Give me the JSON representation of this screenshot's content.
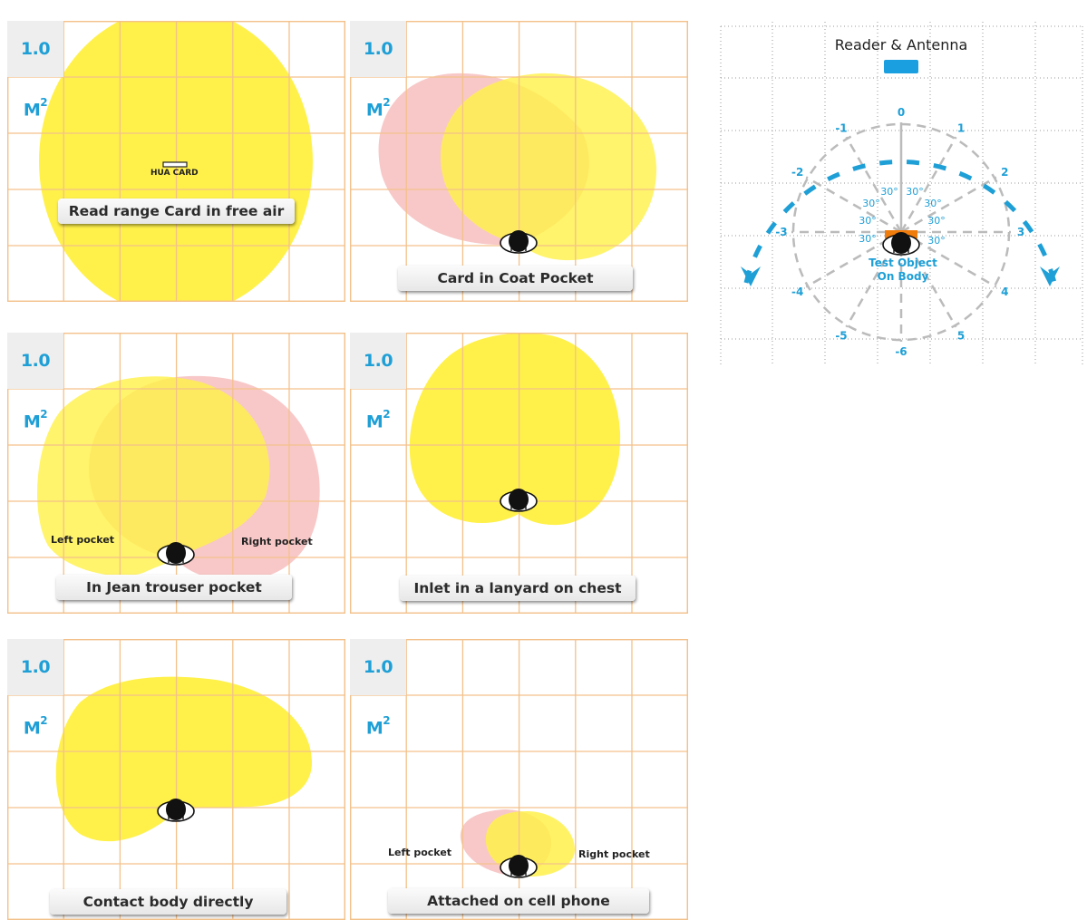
{
  "unit_label": {
    "value": "1.0 M",
    "exponent": "2"
  },
  "panels": [
    {
      "caption": "Read range Card in free air",
      "card_label": "HUA CARD"
    },
    {
      "caption": "Card in Coat Pocket"
    },
    {
      "caption": "In Jean trouser pocket",
      "left_label": "Left pocket",
      "right_label": "Right pocket"
    },
    {
      "caption": "Inlet in a lanyard on chest"
    },
    {
      "caption": "Contact body directly"
    },
    {
      "caption": "Attached on cell phone",
      "left_label": "Left pocket",
      "right_label": "Right pocket"
    }
  ],
  "polar": {
    "title": "Reader & Antenna",
    "test_object": [
      "Test Object",
      "On Body"
    ],
    "angle_label": "30°",
    "ring_labels": [
      "0",
      "1",
      "2",
      "3",
      "4",
      "5",
      "-6",
      "-5",
      "-4",
      "-3",
      "-2",
      "-1"
    ]
  },
  "colors": {
    "grid": "#f3c18a",
    "yellow": "#fff14a",
    "overlap": "#fbe03a",
    "pink": "#f8c8c8",
    "accent_blue": "#1e9fd6",
    "reader_blue": "#1aa0e0",
    "test_orange": "#f07c0c"
  }
}
